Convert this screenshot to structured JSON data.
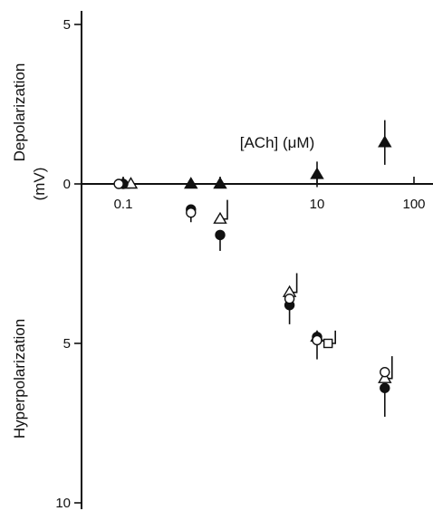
{
  "chart_data": {
    "type": "scatter",
    "title": "",
    "xlabel": "[ACh] (μM)",
    "ylabel_upper": "Depolarization",
    "ylabel_lower": "Hyperpolarization",
    "ylabel_unit": "(mV)",
    "x_scale": "log",
    "xlim": [
      0.05,
      100
    ],
    "ylim": [
      -10,
      5
    ],
    "x_ticks": [
      {
        "value": 0.1,
        "label": "0.1"
      },
      {
        "value": 10,
        "label": "10"
      },
      {
        "value": 100,
        "label": "100"
      }
    ],
    "x_minor_ticks": [
      1
    ],
    "y_ticks": [
      {
        "value": 5,
        "label": "5"
      },
      {
        "value": 0,
        "label": "0"
      },
      {
        "value": -5,
        "label": "5"
      },
      {
        "value": -10,
        "label": "10"
      }
    ],
    "grid": false,
    "series": [
      {
        "marker": "filled-triangle",
        "points": [
          {
            "x": 0.1,
            "y": 0.0,
            "err": 0
          },
          {
            "x": 0.5,
            "y": 0.0,
            "err": 0
          },
          {
            "x": 1.0,
            "y": 0.0,
            "err": 0
          },
          {
            "x": 10,
            "y": 0.3,
            "err": 0.4
          },
          {
            "x": 50,
            "y": 1.3,
            "err": 0.7
          },
          {
            "x": 10,
            "y": -4.8,
            "err": 0
          }
        ]
      },
      {
        "marker": "open-triangle",
        "points": [
          {
            "x": 0.12,
            "y": 0.0,
            "err": 0
          },
          {
            "x": 1.0,
            "y": -1.1,
            "err": 0.6
          },
          {
            "x": 5.2,
            "y": -3.4,
            "err": 0.6
          },
          {
            "x": 50,
            "y": -6.1,
            "err": 0.7
          }
        ]
      },
      {
        "marker": "filled-circle",
        "points": [
          {
            "x": 0.1,
            "y": 0.0,
            "err": 0
          },
          {
            "x": 0.5,
            "y": -0.8,
            "err": 0.4
          },
          {
            "x": 1.0,
            "y": -1.6,
            "err": 0.5
          },
          {
            "x": 5.2,
            "y": -3.8,
            "err": 0.6
          },
          {
            "x": 10,
            "y": -4.8,
            "err": 0.7
          },
          {
            "x": 50,
            "y": -6.4,
            "err": 0.9
          }
        ]
      },
      {
        "marker": "open-circle",
        "points": [
          {
            "x": 0.09,
            "y": 0.0,
            "err": 0
          },
          {
            "x": 0.5,
            "y": -0.9,
            "err": 0
          },
          {
            "x": 5.2,
            "y": -3.6,
            "err": 0
          },
          {
            "x": 10,
            "y": -4.9,
            "err": 0
          },
          {
            "x": 50,
            "y": -5.9,
            "err": 0
          }
        ]
      },
      {
        "marker": "open-square",
        "points": [
          {
            "x": 13,
            "y": -5.0,
            "err": 0.4
          }
        ]
      }
    ]
  }
}
